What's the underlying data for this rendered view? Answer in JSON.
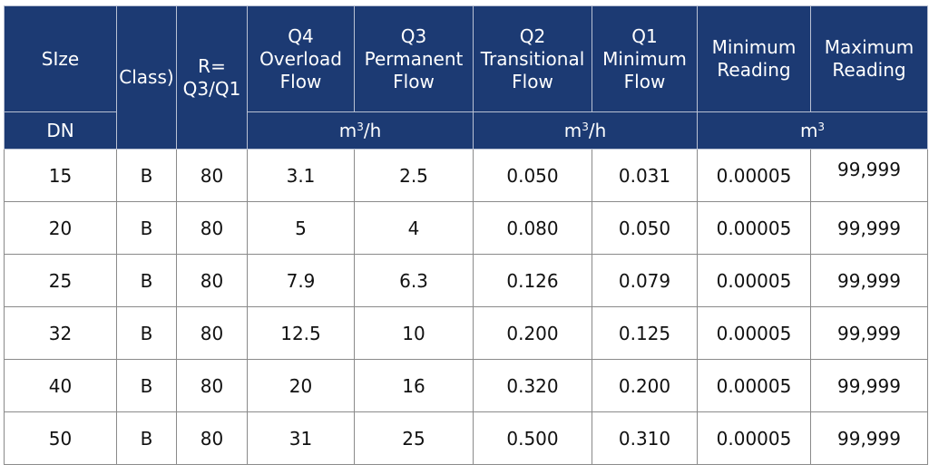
{
  "header": {
    "size": "SIze",
    "dn": "DN",
    "class": "Class)",
    "ratio_line1": "R=",
    "ratio_line2": "Q3/Q1",
    "q4": [
      "Q4",
      "Overload",
      "Flow"
    ],
    "q3": [
      "Q3",
      "Permanent",
      "Flow"
    ],
    "q2": [
      "Q2",
      "Transitional",
      "Flow"
    ],
    "q1": [
      "Q1",
      "Minimum",
      "Flow"
    ],
    "min_reading": [
      "Minimum",
      "Reading"
    ],
    "max_reading": [
      "Maximum",
      "Reading"
    ],
    "unit_flow_1": {
      "base": "m",
      "sup": "3",
      "tail": "/h"
    },
    "unit_flow_2": {
      "base": "m",
      "sup": "3",
      "tail": "/h"
    },
    "unit_volume": {
      "base": "m",
      "sup": "3",
      "tail": ""
    }
  },
  "rows": [
    [
      "15",
      "B",
      "80",
      "3.1",
      "2.5",
      "0.050",
      "0.031",
      "0.00005",
      "99,999"
    ],
    [
      "20",
      "B",
      "80",
      "5",
      "4",
      "0.080",
      "0.050",
      "0.00005",
      "99,999"
    ],
    [
      "25",
      "B",
      "80",
      "7.9",
      "6.3",
      "0.126",
      "0.079",
      "0.00005",
      "99,999"
    ],
    [
      "32",
      "B",
      "80",
      "12.5",
      "10",
      "0.200",
      "0.125",
      "0.00005",
      "99,999"
    ],
    [
      "40",
      "B",
      "80",
      "20",
      "16",
      "0.320",
      "0.200",
      "0.00005",
      "99,999"
    ],
    [
      "50",
      "B",
      "80",
      "31",
      "25",
      "0.500",
      "0.310",
      "0.00005",
      "99,999"
    ]
  ]
}
